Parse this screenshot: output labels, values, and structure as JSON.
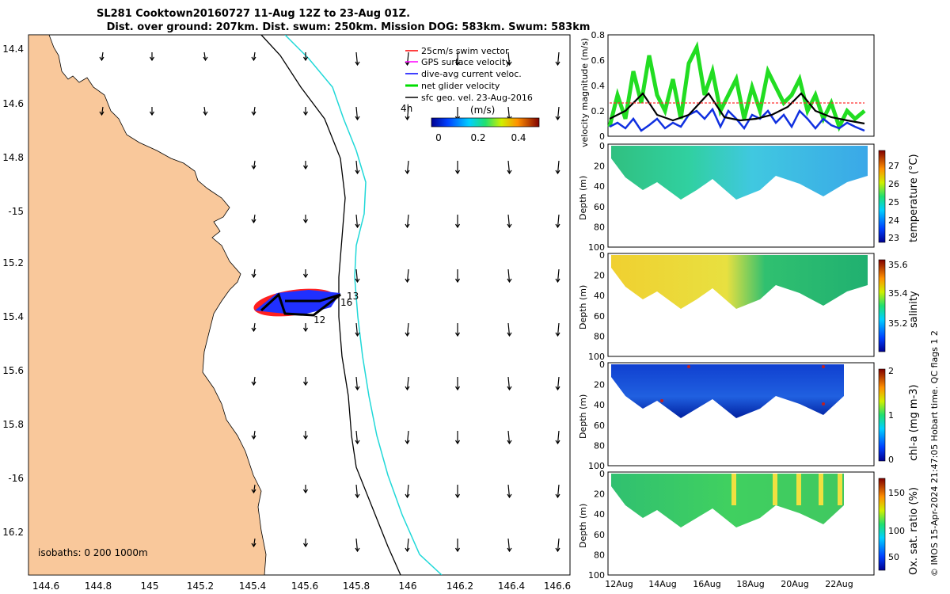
{
  "header": {
    "title_line1": "SL281 Cooktown20160727 11-Aug 12Z to 23-Aug 01Z.",
    "title_line2": "Dist. over ground: 207km. Dist. swum: 250km. Mission DOG: 583km. Swum: 583km"
  },
  "map": {
    "lat_ticks": [
      "14.4",
      "14.6",
      "14.8",
      "-15",
      "15.2",
      "15.4",
      "15.6",
      "15.8",
      "-16",
      "16.2"
    ],
    "lon_ticks": [
      "144.6",
      "144.8",
      "145",
      "145.2",
      "145.4",
      "145.6",
      "145.8",
      "146",
      "146.2",
      "146.4",
      "146.6"
    ],
    "isobaths_label": "isobaths: 0   200  1000m",
    "legend": [
      {
        "label": "25cm/s swim vector",
        "color": "#ff0000"
      },
      {
        "label": "GPS surface velocity",
        "color": "#ff00ff"
      },
      {
        "label": "dive-avg current veloc.",
        "color": "#0000ff"
      },
      {
        "label": "net glider velocity",
        "color": "#00dd00"
      },
      {
        "label": "sfc geo. vel. 23-Aug-2016",
        "color": "#000000"
      }
    ],
    "hour_label": "4h",
    "colorbar": {
      "label": "(m/s)",
      "ticks": [
        "0",
        "0.2",
        "0.4"
      ]
    },
    "track_labels": [
      "13",
      "16",
      "12"
    ],
    "colors": {
      "land": "#f9c89b",
      "coast": "#000000",
      "isobath_200": "#000000",
      "isobath_1000": "#20d8d8"
    }
  },
  "plots": {
    "velocity": {
      "ylabel": "velocity magnitude (m/s)",
      "ticks": [
        "0.8",
        "0.6",
        "0.4",
        "0.2",
        "0"
      ]
    },
    "panels": [
      {
        "id": "temperature",
        "label": "temperature (°C)",
        "cb_ticks": [
          "27",
          "26",
          "25",
          "24",
          "23"
        ]
      },
      {
        "id": "salinity",
        "label": "salinity",
        "cb_ticks": [
          "35.6",
          "35.4",
          "35.2"
        ]
      },
      {
        "id": "chla",
        "label": "chl-a (mg m-3)",
        "cb_ticks": [
          "2",
          "1",
          "0"
        ]
      },
      {
        "id": "oxygen",
        "label": "Ox. sat. ratio (%)",
        "cb_ticks": [
          "150",
          "100",
          "50"
        ]
      }
    ],
    "depth_label": "Depth (m)",
    "depth_ticks": [
      "0",
      "20",
      "40",
      "60",
      "80",
      "100"
    ],
    "x_ticks": [
      "12Aug",
      "14Aug",
      "16Aug",
      "18Aug",
      "20Aug",
      "22Aug"
    ]
  },
  "footer": {
    "credit": "© IMOS 15-Apr-2024 21:47:05 Hobart time. QC flags 1  2"
  }
}
